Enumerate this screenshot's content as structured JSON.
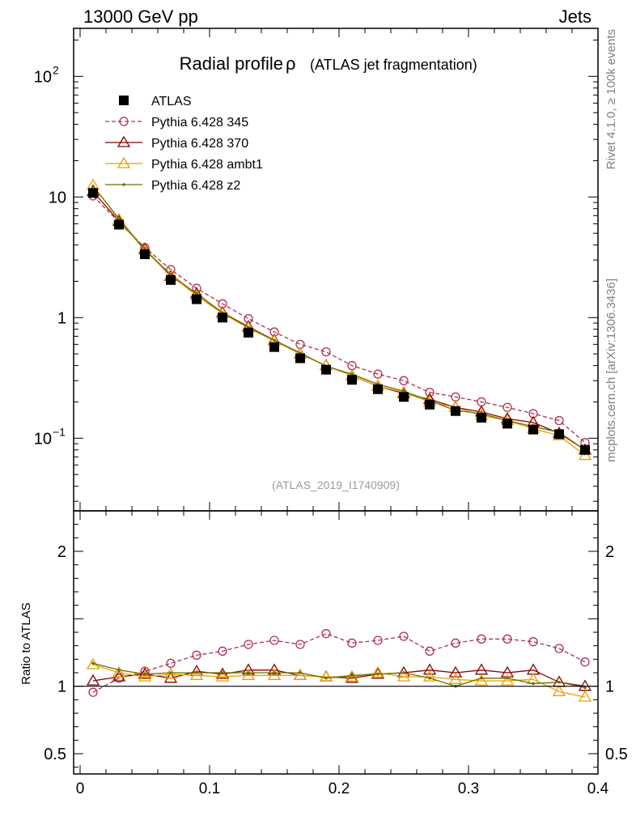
{
  "header": {
    "left": "13000 GeV pp",
    "right": "Jets"
  },
  "side_text": {
    "top": "Rivet 4.1.0, ≥ 100k events",
    "bottom": "mcplots.cern.ch [arXiv:1306.3436]"
  },
  "chart_data": {
    "type": "line",
    "title": "Radial profile",
    "title_symbol": "ρ",
    "subtitle": "(ATLAS jet fragmentation)",
    "watermark": "(ATLAS_2019_I1740909)",
    "x": [
      0.01,
      0.03,
      0.05,
      0.07,
      0.09,
      0.11,
      0.13,
      0.15,
      0.17,
      0.19,
      0.21,
      0.23,
      0.25,
      0.27,
      0.29,
      0.31,
      0.33,
      0.35,
      0.37,
      0.39
    ],
    "xlim": [
      -0.005,
      0.4
    ],
    "x_ticks": [
      {
        "v": 0,
        "label": "0"
      },
      {
        "v": 0.1,
        "label": "0.1"
      },
      {
        "v": 0.2,
        "label": "0.2"
      },
      {
        "v": 0.3,
        "label": "0.3"
      },
      {
        "v": 0.4,
        "label": "0.4"
      }
    ],
    "main": {
      "yscale": "log",
      "ylim": [
        0.025,
        250
      ],
      "y_ticks": [
        {
          "v": 0.1,
          "base": "10",
          "exp": "−1"
        },
        {
          "v": 1,
          "base": "1",
          "exp": ""
        },
        {
          "v": 10,
          "base": "10",
          "exp": ""
        },
        {
          "v": 100,
          "base": "10",
          "exp": "2"
        }
      ]
    },
    "ratio": {
      "ylabel": "Ratio to ATLAS",
      "ylim": [
        0.35,
        2.3
      ],
      "y_ticks": [
        {
          "v": 0.5,
          "label": "0.5"
        },
        {
          "v": 1,
          "label": "1"
        },
        {
          "v": 2,
          "label": "2"
        }
      ],
      "reference": 1
    },
    "series": [
      {
        "name": "ATLAS",
        "color": "#000000",
        "marker": "square",
        "style": "none",
        "values": [
          10.8,
          5.9,
          3.35,
          2.05,
          1.42,
          1.0,
          0.75,
          0.57,
          0.46,
          0.37,
          0.305,
          0.255,
          0.22,
          0.19,
          0.168,
          0.148,
          0.132,
          0.118,
          0.108,
          0.08
        ]
      },
      {
        "name": "Pythia 6.428 345",
        "color": "#b03050",
        "marker": "circle",
        "style": "dashed",
        "values": [
          10.2,
          6.2,
          3.8,
          2.5,
          1.75,
          1.3,
          0.98,
          0.76,
          0.6,
          0.52,
          0.4,
          0.34,
          0.3,
          0.24,
          0.22,
          0.2,
          0.18,
          0.16,
          0.14,
          0.092
        ],
        "ratio": [
          0.955,
          1.06,
          1.11,
          1.17,
          1.23,
          1.26,
          1.31,
          1.34,
          1.31,
          1.39,
          1.32,
          1.34,
          1.37,
          1.26,
          1.32,
          1.35,
          1.35,
          1.33,
          1.28,
          1.18
        ]
      },
      {
        "name": "Pythia 6.428 370",
        "color": "#8b0000",
        "marker": "triangle",
        "style": "solid",
        "values": [
          11.1,
          6.3,
          3.7,
          2.2,
          1.58,
          1.1,
          0.84,
          0.65,
          0.5,
          0.4,
          0.33,
          0.27,
          0.235,
          0.21,
          0.18,
          0.165,
          0.145,
          0.135,
          0.11,
          0.08
        ],
        "ratio": [
          1.04,
          1.07,
          1.09,
          1.06,
          1.11,
          1.09,
          1.12,
          1.12,
          1.08,
          1.07,
          1.06,
          1.09,
          1.1,
          1.12,
          1.1,
          1.12,
          1.1,
          1.12,
          1.03,
          1.0
        ]
      },
      {
        "name": "Pythia 6.428 ambt1",
        "color": "#e8a000",
        "marker": "triangle",
        "style": "solid",
        "values": [
          12.5,
          6.5,
          3.6,
          2.25,
          1.52,
          1.08,
          0.82,
          0.64,
          0.5,
          0.4,
          0.33,
          0.27,
          0.24,
          0.2,
          0.18,
          0.155,
          0.14,
          0.12,
          0.105,
          0.072
        ],
        "ratio": [
          1.16,
          1.1,
          1.07,
          1.09,
          1.08,
          1.07,
          1.08,
          1.08,
          1.08,
          1.07,
          1.07,
          1.1,
          1.07,
          1.07,
          1.05,
          1.04,
          1.04,
          1.05,
          0.96,
          0.92
        ]
      },
      {
        "name": "Pythia 6.428 z2",
        "color": "#6b7000",
        "marker": "dot",
        "style": "solid",
        "values": [
          12.3,
          6.6,
          3.65,
          2.28,
          1.57,
          1.1,
          0.83,
          0.65,
          0.51,
          0.395,
          0.34,
          0.28,
          0.245,
          0.205,
          0.17,
          0.16,
          0.14,
          0.125,
          0.112,
          0.08
        ],
        "ratio": [
          1.17,
          1.12,
          1.09,
          1.1,
          1.1,
          1.1,
          1.1,
          1.1,
          1.1,
          1.06,
          1.08,
          1.09,
          1.1,
          1.06,
          1.0,
          1.06,
          1.06,
          1.02,
          1.03,
          0.99
        ]
      }
    ]
  }
}
